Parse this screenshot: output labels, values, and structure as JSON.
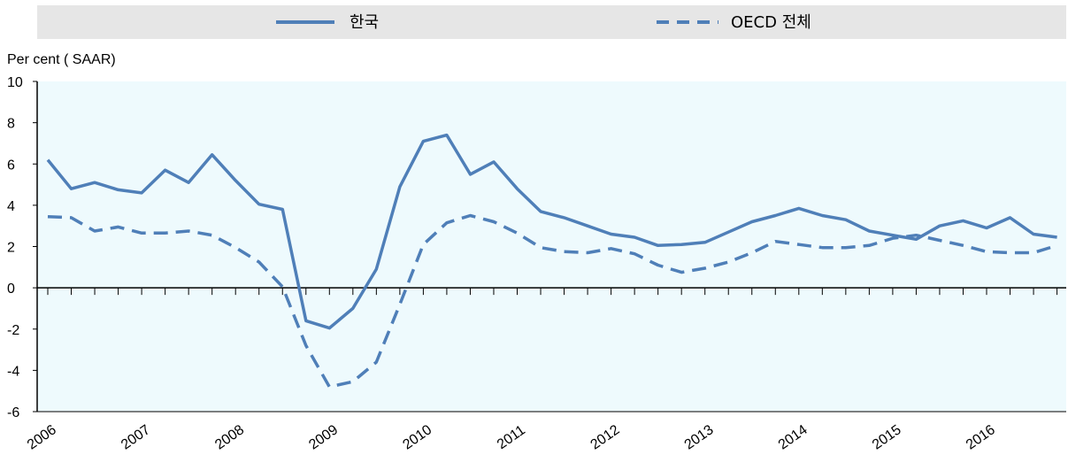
{
  "chart_data": {
    "type": "line",
    "ylabel": "Per cent ( SAAR)",
    "ylim": [
      -6,
      10
    ],
    "yticks": [
      10,
      8,
      6,
      4,
      2,
      0,
      -2,
      -4,
      -6
    ],
    "xlim": [
      2006,
      2016.85
    ],
    "x_tick_labels": [
      "2006",
      "2007",
      "2008",
      "2009",
      "2010",
      "2011",
      "2012",
      "2013",
      "2014",
      "2015",
      "2016"
    ],
    "legend_position": "top",
    "grid": false,
    "series": [
      {
        "name": "한국",
        "style": "solid",
        "color": "#4f7fb8",
        "x": [
          2006.0,
          2006.25,
          2006.5,
          2006.75,
          2007.0,
          2007.25,
          2007.5,
          2007.75,
          2008.0,
          2008.25,
          2008.5,
          2008.75,
          2009.0,
          2009.25,
          2009.5,
          2009.75,
          2010.0,
          2010.25,
          2010.5,
          2010.75,
          2011.0,
          2011.25,
          2011.5,
          2011.75,
          2012.0,
          2012.25,
          2012.5,
          2012.75,
          2013.0,
          2013.25,
          2013.5,
          2013.75,
          2014.0,
          2014.25,
          2014.5,
          2014.75,
          2015.0,
          2015.25,
          2015.5,
          2015.75,
          2016.0,
          2016.25,
          2016.5,
          2016.75
        ],
        "values": [
          6.2,
          4.8,
          5.1,
          4.75,
          4.6,
          5.7,
          5.1,
          6.45,
          5.2,
          4.05,
          3.8,
          -1.6,
          -1.95,
          -1.0,
          0.9,
          4.9,
          7.1,
          7.4,
          5.5,
          6.1,
          4.8,
          3.7,
          3.4,
          3.0,
          2.6,
          2.45,
          2.05,
          2.1,
          2.2,
          2.7,
          3.2,
          3.5,
          3.85,
          3.5,
          3.3,
          2.75,
          2.55,
          2.35,
          3.0,
          3.25,
          2.9,
          3.4,
          2.6,
          2.45
        ]
      },
      {
        "name": "OECD 전체",
        "style": "dashed",
        "color": "#4f7fb8",
        "x": [
          2006.0,
          2006.25,
          2006.5,
          2006.75,
          2007.0,
          2007.25,
          2007.5,
          2007.75,
          2008.0,
          2008.25,
          2008.5,
          2008.75,
          2009.0,
          2009.25,
          2009.5,
          2009.75,
          2010.0,
          2010.25,
          2010.5,
          2010.75,
          2011.0,
          2011.25,
          2011.5,
          2011.75,
          2012.0,
          2012.25,
          2012.5,
          2012.75,
          2013.0,
          2013.25,
          2013.5,
          2013.75,
          2014.0,
          2014.25,
          2014.5,
          2014.75,
          2015.0,
          2015.25,
          2015.5,
          2015.75,
          2016.0,
          2016.25,
          2016.5,
          2016.75
        ],
        "values": [
          3.45,
          3.4,
          2.75,
          2.95,
          2.65,
          2.65,
          2.75,
          2.55,
          1.95,
          1.25,
          0.05,
          -2.8,
          -4.8,
          -4.55,
          -3.6,
          -0.8,
          2.1,
          3.15,
          3.5,
          3.2,
          2.65,
          1.95,
          1.75,
          1.7,
          1.9,
          1.65,
          1.1,
          0.75,
          0.95,
          1.25,
          1.7,
          2.25,
          2.1,
          1.95,
          1.95,
          2.05,
          2.4,
          2.55,
          2.3,
          2.05,
          1.75,
          1.7,
          1.7,
          2.05
        ]
      }
    ]
  }
}
